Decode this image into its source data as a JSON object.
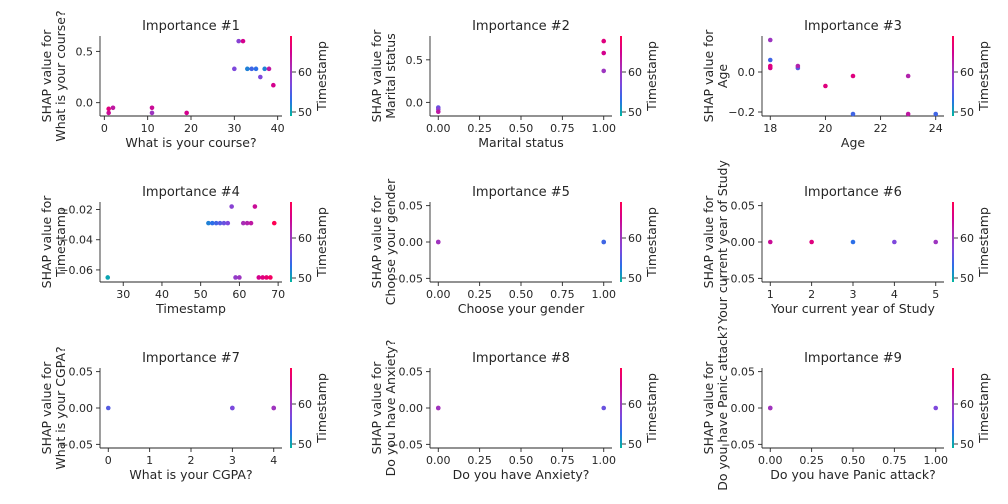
{
  "figure": {
    "colorbar_label": "Timestamp",
    "colorbar_ticks": [
      50,
      60
    ],
    "colorbar_range": [
      49,
      69
    ],
    "colormap": [
      "#00b5a0",
      "#2b6fe8",
      "#7e48dc",
      "#a72fb6",
      "#d4008d",
      "#ff0052"
    ]
  },
  "chart_data": [
    {
      "type": "scatter",
      "title": "Importance #1",
      "xlabel": "What is your course?",
      "ylabel": "SHAP value for\nWhat is your course?",
      "xlim": [
        -1,
        41
      ],
      "ylim": [
        -0.13,
        0.65
      ],
      "xticks": [
        0,
        10,
        20,
        30,
        40
      ],
      "yticks": [
        0.0,
        0.5
      ],
      "points": [
        {
          "x": 1,
          "y": -0.1,
          "c": 64
        },
        {
          "x": 1,
          "y": -0.06,
          "c": 66
        },
        {
          "x": 2,
          "y": -0.05,
          "c": 63
        },
        {
          "x": 11,
          "y": -0.1,
          "c": 60
        },
        {
          "x": 11,
          "y": -0.05,
          "c": 64
        },
        {
          "x": 19,
          "y": -0.1,
          "c": 65
        },
        {
          "x": 30,
          "y": 0.33,
          "c": 57
        },
        {
          "x": 31,
          "y": 0.6,
          "c": 58
        },
        {
          "x": 32,
          "y": 0.6,
          "c": 65
        },
        {
          "x": 33,
          "y": 0.33,
          "c": 52
        },
        {
          "x": 34,
          "y": 0.33,
          "c": 54
        },
        {
          "x": 35,
          "y": 0.33,
          "c": 53
        },
        {
          "x": 36,
          "y": 0.25,
          "c": 57
        },
        {
          "x": 37,
          "y": 0.33,
          "c": 52
        },
        {
          "x": 38,
          "y": 0.33,
          "c": 63
        },
        {
          "x": 39,
          "y": 0.17,
          "c": 65
        }
      ]
    },
    {
      "type": "scatter",
      "title": "Importance #2",
      "xlabel": "Marital status",
      "ylabel": "SHAP value for\nMarital status",
      "xlim": [
        -0.05,
        1.05
      ],
      "ylim": [
        -0.16,
        0.78
      ],
      "xticks": [
        0.0,
        0.25,
        0.5,
        0.75,
        1.0
      ],
      "yticks": [
        0.0,
        0.5
      ],
      "points": [
        {
          "x": 0,
          "y": -0.06,
          "c": 56
        },
        {
          "x": 0,
          "y": -0.08,
          "c": 58
        },
        {
          "x": 0,
          "y": -0.11,
          "c": 63
        },
        {
          "x": 1,
          "y": 0.72,
          "c": 66
        },
        {
          "x": 1,
          "y": 0.58,
          "c": 65
        },
        {
          "x": 1,
          "y": 0.37,
          "c": 60
        }
      ]
    },
    {
      "type": "scatter",
      "title": "Importance #3",
      "xlabel": "Age",
      "ylabel": "SHAP value for\nAge",
      "xlim": [
        17.7,
        24.3
      ],
      "ylim": [
        -0.22,
        0.18
      ],
      "xticks": [
        18,
        20,
        22,
        24
      ],
      "yticks": [
        0.0,
        -0.2
      ],
      "points": [
        {
          "x": 18,
          "y": 0.16,
          "c": 60
        },
        {
          "x": 18,
          "y": 0.06,
          "c": 54
        },
        {
          "x": 18,
          "y": 0.02,
          "c": 65
        },
        {
          "x": 18,
          "y": 0.03,
          "c": 66
        },
        {
          "x": 19,
          "y": 0.02,
          "c": 55
        },
        {
          "x": 19,
          "y": 0.03,
          "c": 62
        },
        {
          "x": 20,
          "y": -0.07,
          "c": 66
        },
        {
          "x": 21,
          "y": -0.02,
          "c": 66
        },
        {
          "x": 21,
          "y": -0.21,
          "c": 54
        },
        {
          "x": 23,
          "y": -0.02,
          "c": 62
        },
        {
          "x": 23,
          "y": -0.21,
          "c": 63
        },
        {
          "x": 24,
          "y": -0.21,
          "c": 54
        }
      ]
    },
    {
      "type": "scatter",
      "title": "Importance #4",
      "xlabel": "Timestamp",
      "ylabel": "SHAP value for\nTimestamp",
      "xlim": [
        24,
        71
      ],
      "ylim": [
        -0.068,
        -0.015
      ],
      "xticks": [
        30,
        40,
        50,
        60,
        70
      ],
      "yticks": [
        -0.02,
        -0.04,
        -0.06
      ],
      "points": [
        {
          "x": 26,
          "y": -0.065,
          "c": 50
        },
        {
          "x": 52,
          "y": -0.029,
          "c": 52
        },
        {
          "x": 53,
          "y": -0.029,
          "c": 53
        },
        {
          "x": 54,
          "y": -0.029,
          "c": 54
        },
        {
          "x": 55,
          "y": -0.029,
          "c": 55
        },
        {
          "x": 56,
          "y": -0.029,
          "c": 56
        },
        {
          "x": 57,
          "y": -0.029,
          "c": 57
        },
        {
          "x": 58,
          "y": -0.018,
          "c": 58
        },
        {
          "x": 59,
          "y": -0.065,
          "c": 59
        },
        {
          "x": 60,
          "y": -0.065,
          "c": 60
        },
        {
          "x": 61,
          "y": -0.029,
          "c": 61
        },
        {
          "x": 62,
          "y": -0.029,
          "c": 62
        },
        {
          "x": 63,
          "y": -0.029,
          "c": 63
        },
        {
          "x": 64,
          "y": -0.018,
          "c": 64
        },
        {
          "x": 65,
          "y": -0.065,
          "c": 65
        },
        {
          "x": 66,
          "y": -0.065,
          "c": 66
        },
        {
          "x": 67,
          "y": -0.065,
          "c": 67
        },
        {
          "x": 68,
          "y": -0.065,
          "c": 68
        },
        {
          "x": 69,
          "y": -0.029,
          "c": 69
        }
      ]
    },
    {
      "type": "scatter",
      "title": "Importance #5",
      "xlabel": "Choose your gender",
      "ylabel": "SHAP value for\nChoose your gender",
      "xlim": [
        -0.05,
        1.05
      ],
      "ylim": [
        -0.055,
        0.055
      ],
      "xticks": [
        0.0,
        0.25,
        0.5,
        0.75,
        1.0
      ],
      "yticks": [
        0.05,
        0.0,
        -0.05
      ],
      "points": [
        {
          "x": 0,
          "y": 0,
          "c": 66
        },
        {
          "x": 0,
          "y": 0,
          "c": 60
        },
        {
          "x": 1,
          "y": 0,
          "c": 52
        },
        {
          "x": 1,
          "y": 0,
          "c": 54
        }
      ]
    },
    {
      "type": "scatter",
      "title": "Importance #6",
      "xlabel": "Your current year of Study",
      "ylabel": "SHAP value for\nYour current year of Study",
      "xlim": [
        0.8,
        5.2
      ],
      "ylim": [
        -0.055,
        0.055
      ],
      "xticks": [
        1,
        2,
        3,
        4,
        5
      ],
      "yticks": [
        0.05,
        0.0,
        -0.05
      ],
      "points": [
        {
          "x": 1,
          "y": 0,
          "c": 64
        },
        {
          "x": 2,
          "y": 0,
          "c": 66
        },
        {
          "x": 3,
          "y": 0,
          "c": 53
        },
        {
          "x": 4,
          "y": 0,
          "c": 57
        },
        {
          "x": 5,
          "y": 0,
          "c": 60
        }
      ]
    },
    {
      "type": "scatter",
      "title": "Importance #7",
      "xlabel": "What is your CGPA?",
      "ylabel": "SHAP value for\nWhat is your CGPA?",
      "xlim": [
        -0.2,
        4.2
      ],
      "ylim": [
        -0.055,
        0.055
      ],
      "xticks": [
        0,
        1,
        2,
        3,
        4
      ],
      "yticks": [
        0.05,
        0.0,
        -0.05
      ],
      "points": [
        {
          "x": 0,
          "y": 0,
          "c": 55
        },
        {
          "x": 3,
          "y": 0,
          "c": 53
        },
        {
          "x": 3,
          "y": 0,
          "c": 57
        },
        {
          "x": 4,
          "y": 0,
          "c": 63
        },
        {
          "x": 4,
          "y": 0,
          "c": 60
        }
      ]
    },
    {
      "type": "scatter",
      "title": "Importance #8",
      "xlabel": "Do you have Anxiety?",
      "ylabel": "SHAP value for\nDo you have Anxiety?",
      "xlim": [
        -0.05,
        1.05
      ],
      "ylim": [
        -0.055,
        0.055
      ],
      "xticks": [
        0.0,
        0.25,
        0.5,
        0.75,
        1.0
      ],
      "yticks": [
        0.05,
        0.0,
        -0.05
      ],
      "points": [
        {
          "x": 0,
          "y": 0,
          "c": 66
        },
        {
          "x": 0,
          "y": 0,
          "c": 60
        },
        {
          "x": 1,
          "y": 0,
          "c": 56
        }
      ]
    },
    {
      "type": "scatter",
      "title": "Importance #9",
      "xlabel": "Do you have Panic attack?",
      "ylabel": "SHAP value for\nDo you have Panic attack?",
      "xlim": [
        -0.05,
        1.05
      ],
      "ylim": [
        -0.055,
        0.055
      ],
      "xticks": [
        0.0,
        0.25,
        0.5,
        0.75,
        1.0
      ],
      "yticks": [
        0.05,
        0.0,
        -0.05
      ],
      "points": [
        {
          "x": 0,
          "y": 0,
          "c": 66
        },
        {
          "x": 0,
          "y": 0,
          "c": 60
        },
        {
          "x": 1,
          "y": 0,
          "c": 57
        }
      ]
    }
  ]
}
